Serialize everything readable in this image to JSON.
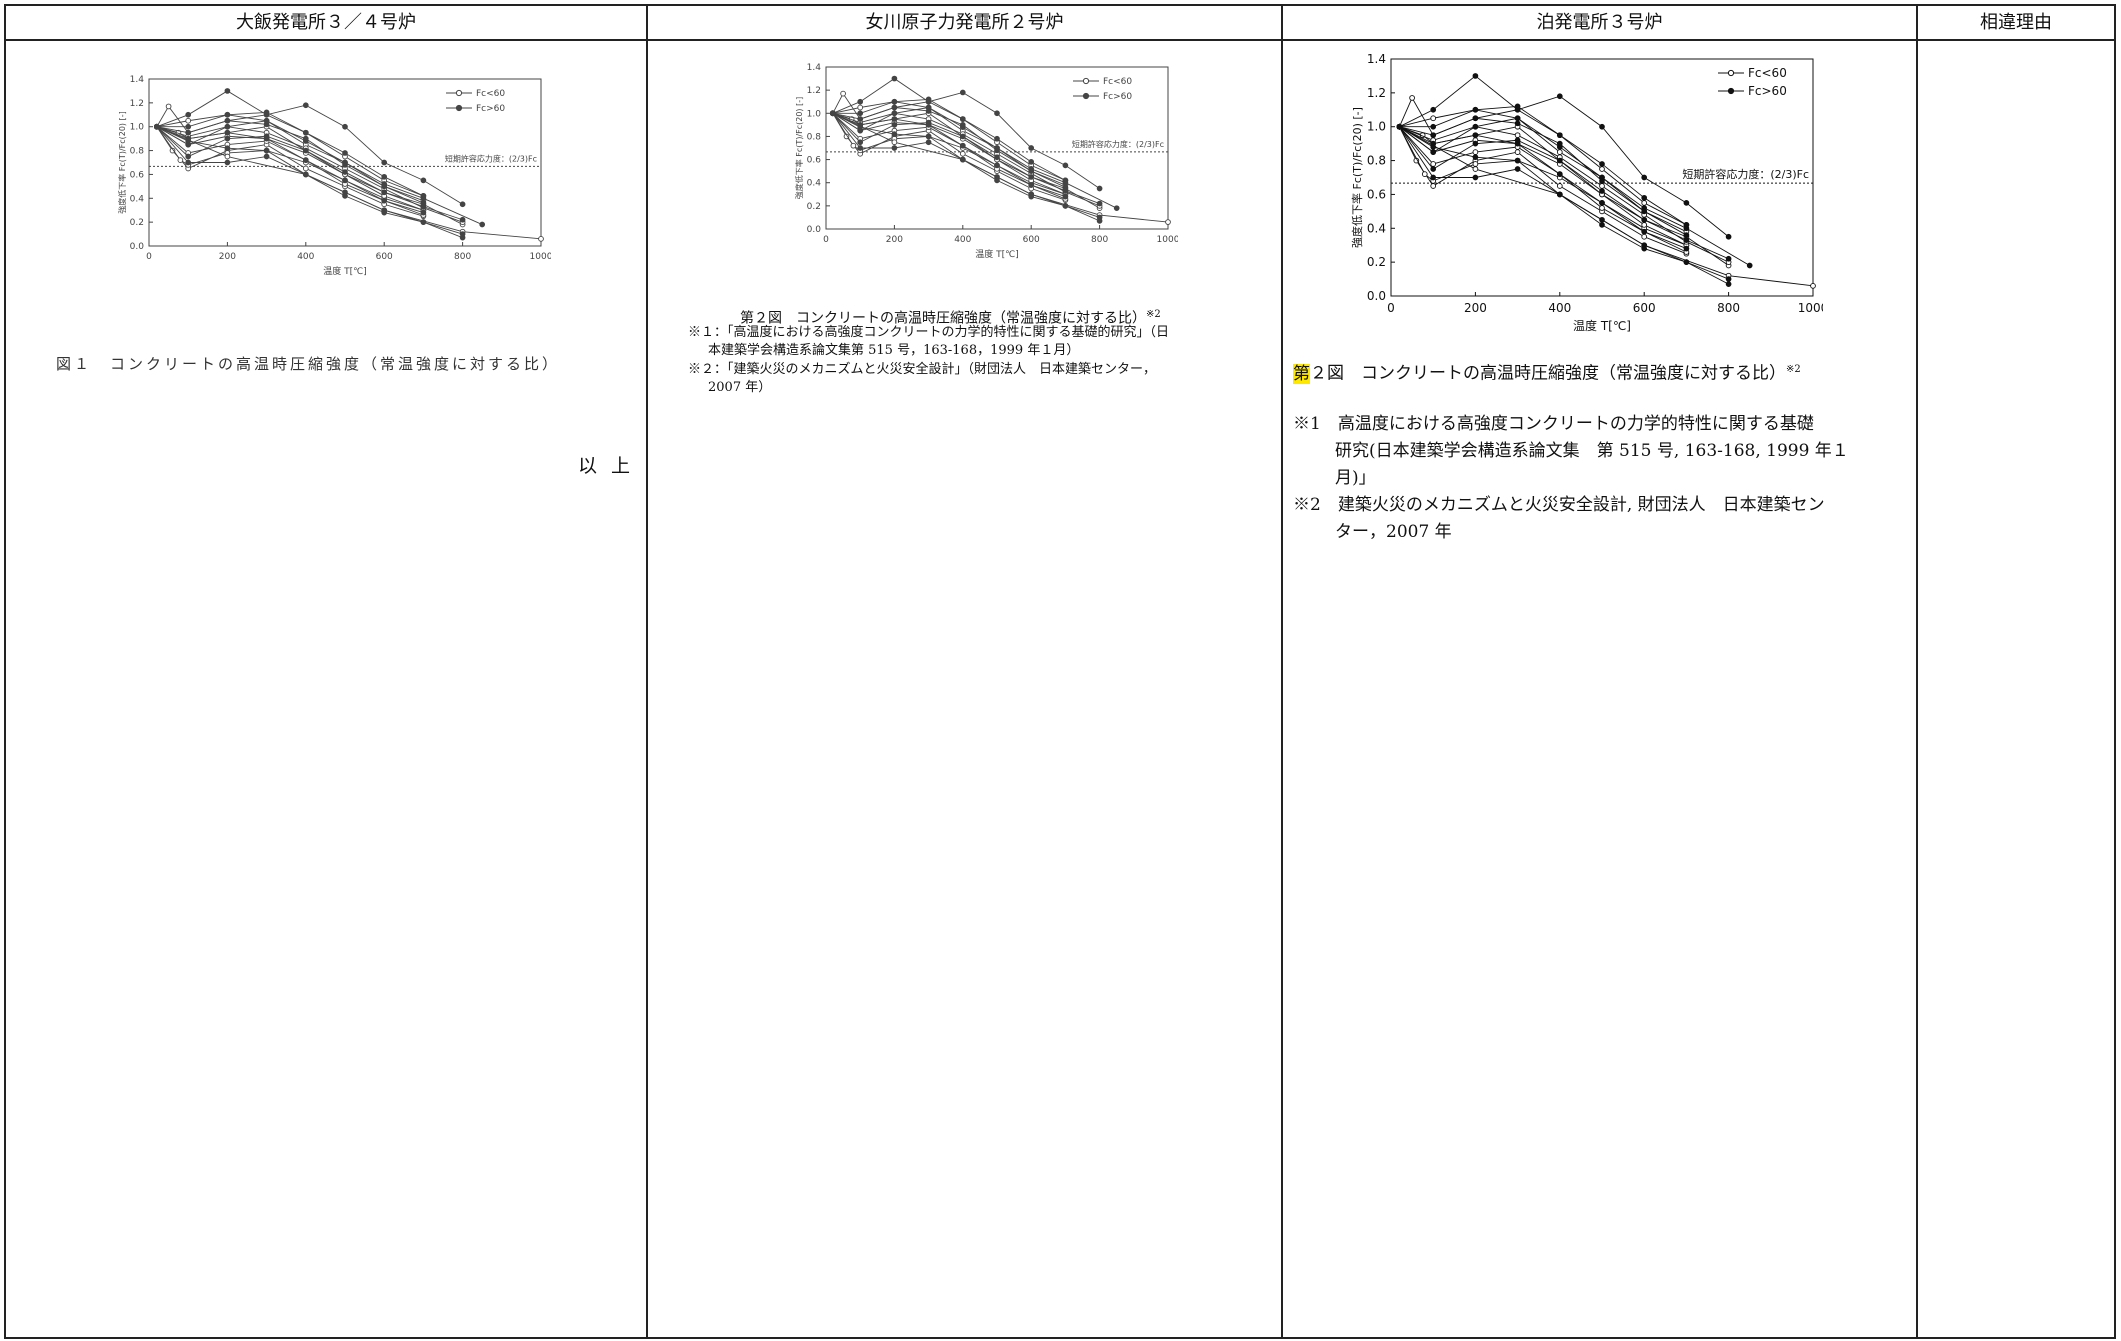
{
  "headers": {
    "col1": "大飯発電所３／４号炉",
    "col2": "女川原子力発電所２号炉",
    "col3": "泊発電所３号炉",
    "col4": "相違理由"
  },
  "col1": {
    "caption": "図１　コンクリートの高温時圧縮強度（常温強度に対する比）",
    "end_mark": "以上"
  },
  "col2": {
    "caption": "第２図　コンクリートの高温時圧縮強度（常温強度に対する比）",
    "caption_sup": "※2",
    "note1_a": "※１：「高温度における高強度コンクリートの力学的特性に関する基礎的研究」（日",
    "note1_b": "本建築学会構造系論文集第 515 号，163-168，1999 年１月）",
    "note2_a": "※２：「建築火災のメカニズムと火災安全設計」（財団法人　日本建築センター，",
    "note2_b": "2007 年）"
  },
  "col3": {
    "caption_hl": "第",
    "caption_rest": "２図　コンクリートの高温時圧縮強度（常温強度に対する比）",
    "caption_sup": "※2",
    "note1_a": "※1　高温度における高強度コンクリートの力学的特性に関する基礎",
    "note1_b": "研究(日本建築学会構造系論文集　第 515 号, 163-168, 1999 年１",
    "note1_c": "月)」",
    "note2_a": "※2　建築火災のメカニズムと火災安全設計, 財団法人　日本建築セン",
    "note2_b": "ター，2007 年"
  },
  "chart_data": {
    "type": "line",
    "xlabel": "温度 T[℃]",
    "ylabel": "強度低下率 Fc(T)/Fc(20) [-]",
    "xlim": [
      0,
      1000
    ],
    "ylim": [
      0,
      1.4
    ],
    "xticks": [
      0,
      200,
      400,
      600,
      800,
      1000
    ],
    "yticks": [
      0.0,
      0.2,
      0.4,
      0.6,
      0.8,
      1.0,
      1.2,
      1.4
    ],
    "legend": [
      "Fc<60",
      "Fc>60"
    ],
    "legend_position": "top-right",
    "reference_line": {
      "label": "短期許容応力度：(2/3)Fc",
      "y": 0.667
    },
    "open_series": [
      [
        [
          20,
          1.0
        ],
        [
          50,
          1.17
        ],
        [
          100,
          0.95
        ],
        [
          200,
          1.05
        ],
        [
          300,
          1.1
        ],
        [
          400,
          0.95
        ],
        [
          500,
          0.75
        ],
        [
          600,
          0.55
        ],
        [
          700,
          0.42
        ]
      ],
      [
        [
          20,
          1.0
        ],
        [
          60,
          0.8
        ],
        [
          100,
          0.65
        ],
        [
          200,
          0.8
        ],
        [
          300,
          0.85
        ],
        [
          400,
          0.65
        ],
        [
          500,
          0.5
        ],
        [
          600,
          0.35
        ],
        [
          700,
          0.25
        ]
      ],
      [
        [
          20,
          1.0
        ],
        [
          75,
          0.95
        ],
        [
          100,
          0.9
        ],
        [
          200,
          0.95
        ],
        [
          300,
          1.0
        ],
        [
          400,
          0.8
        ],
        [
          500,
          0.6
        ],
        [
          600,
          0.45
        ],
        [
          700,
          0.35
        ],
        [
          800,
          0.18
        ]
      ],
      [
        [
          20,
          1.0
        ],
        [
          80,
          0.72
        ],
        [
          100,
          0.68
        ],
        [
          200,
          0.78
        ],
        [
          300,
          0.8
        ],
        [
          400,
          0.7
        ],
        [
          500,
          0.55
        ],
        [
          600,
          0.4
        ],
        [
          700,
          0.3
        ]
      ],
      [
        [
          20,
          1.0
        ],
        [
          100,
          1.05
        ],
        [
          200,
          1.1
        ],
        [
          300,
          1.05
        ],
        [
          400,
          0.85
        ],
        [
          500,
          0.7
        ],
        [
          600,
          0.5
        ],
        [
          700,
          0.38
        ]
      ],
      [
        [
          20,
          1.0
        ],
        [
          100,
          0.85
        ],
        [
          200,
          0.92
        ],
        [
          300,
          0.9
        ],
        [
          400,
          0.78
        ],
        [
          500,
          0.6
        ],
        [
          600,
          0.42
        ],
        [
          700,
          0.3
        ]
      ],
      [
        [
          20,
          1.0
        ],
        [
          100,
          0.92
        ],
        [
          200,
          1.0
        ],
        [
          300,
          0.95
        ],
        [
          400,
          0.82
        ],
        [
          500,
          0.65
        ],
        [
          600,
          0.48
        ],
        [
          700,
          0.32
        ],
        [
          800,
          0.2
        ]
      ],
      [
        [
          20,
          1.0
        ],
        [
          100,
          0.78
        ],
        [
          200,
          0.85
        ],
        [
          300,
          0.88
        ],
        [
          400,
          0.72
        ],
        [
          500,
          0.52
        ],
        [
          600,
          0.38
        ],
        [
          700,
          0.26
        ]
      ],
      [
        [
          20,
          1.0
        ],
        [
          200,
          0.75
        ],
        [
          400,
          0.6
        ],
        [
          600,
          0.3
        ],
        [
          800,
          0.12
        ],
        [
          1000,
          0.06
        ]
      ]
    ],
    "filled_series": [
      [
        [
          20,
          1.0
        ],
        [
          100,
          1.1
        ],
        [
          200,
          1.3
        ],
        [
          300,
          1.1
        ],
        [
          400,
          1.18
        ],
        [
          500,
          1.0
        ],
        [
          600,
          0.7
        ],
        [
          700,
          0.55
        ],
        [
          800,
          0.35
        ]
      ],
      [
        [
          20,
          1.0
        ],
        [
          100,
          0.85
        ],
        [
          200,
          1.0
        ],
        [
          300,
          1.05
        ],
        [
          400,
          0.88
        ],
        [
          500,
          0.7
        ],
        [
          600,
          0.52
        ],
        [
          700,
          0.4
        ],
        [
          850,
          0.18
        ]
      ],
      [
        [
          20,
          1.0
        ],
        [
          100,
          0.9
        ],
        [
          200,
          0.95
        ],
        [
          300,
          0.9
        ],
        [
          400,
          0.72
        ],
        [
          500,
          0.55
        ],
        [
          600,
          0.38
        ],
        [
          700,
          0.28
        ]
      ],
      [
        [
          20,
          1.0
        ],
        [
          100,
          0.75
        ],
        [
          200,
          0.9
        ],
        [
          300,
          0.92
        ],
        [
          400,
          0.8
        ],
        [
          500,
          0.62
        ],
        [
          600,
          0.45
        ],
        [
          700,
          0.33
        ],
        [
          800,
          0.22
        ]
      ],
      [
        [
          20,
          1.0
        ],
        [
          100,
          1.0
        ],
        [
          200,
          1.1
        ],
        [
          300,
          1.12
        ],
        [
          400,
          0.95
        ],
        [
          500,
          0.78
        ],
        [
          600,
          0.58
        ],
        [
          700,
          0.42
        ]
      ],
      [
        [
          20,
          1.0
        ],
        [
          100,
          0.7
        ],
        [
          200,
          0.7
        ],
        [
          300,
          0.75
        ],
        [
          400,
          0.6
        ],
        [
          500,
          0.45
        ],
        [
          600,
          0.3
        ],
        [
          700,
          0.2
        ],
        [
          800,
          0.1
        ]
      ],
      [
        [
          20,
          1.0
        ],
        [
          100,
          0.95
        ],
        [
          200,
          1.05
        ],
        [
          300,
          1.02
        ],
        [
          400,
          0.9
        ],
        [
          500,
          0.68
        ],
        [
          600,
          0.5
        ],
        [
          700,
          0.36
        ]
      ],
      [
        [
          20,
          1.0
        ],
        [
          100,
          0.88
        ],
        [
          200,
          0.82
        ],
        [
          300,
          0.8
        ],
        [
          400,
          0.6
        ],
        [
          500,
          0.42
        ],
        [
          600,
          0.28
        ],
        [
          700,
          0.2
        ],
        [
          800,
          0.07
        ]
      ]
    ]
  }
}
